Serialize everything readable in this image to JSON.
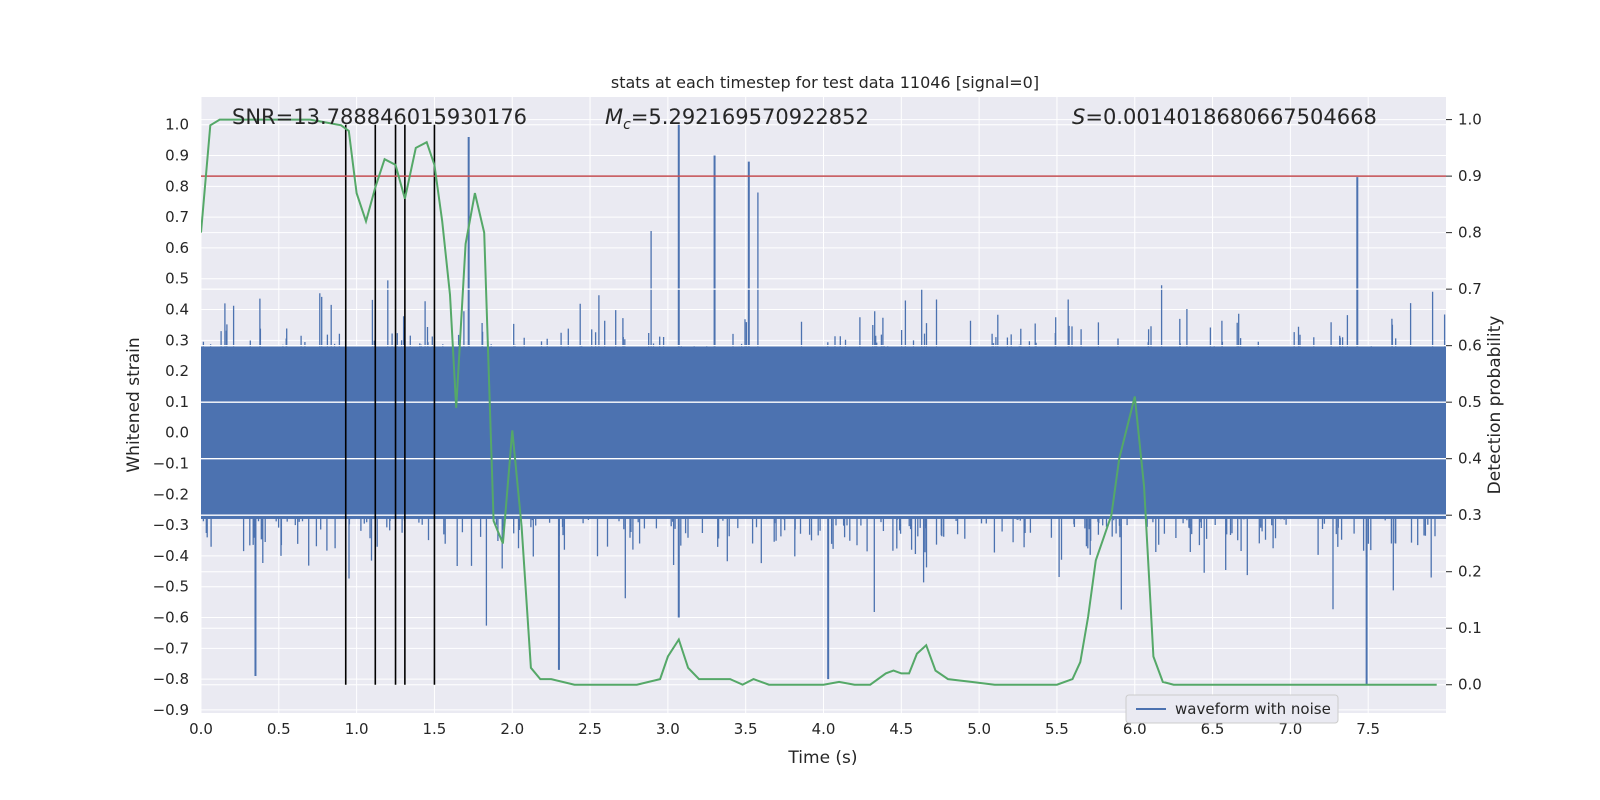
{
  "chart_data": {
    "type": "line",
    "title": "stats at each timestep for test data 11046 [signal=0]",
    "xlabel": "Time (s)",
    "ylabel": "Whitened strain",
    "y2label": "Detection probability",
    "xlim": [
      0.0,
      8.0
    ],
    "ylim": [
      -0.91,
      1.09
    ],
    "y2lim": [
      -0.05,
      1.04
    ],
    "xticks": [
      "0.0",
      "0.5",
      "1.0",
      "1.5",
      "2.0",
      "2.5",
      "3.0",
      "3.5",
      "4.0",
      "4.5",
      "5.0",
      "5.5",
      "6.0",
      "6.5",
      "7.0",
      "7.5"
    ],
    "yticks": [
      "1.0",
      "0.9",
      "0.8",
      "0.7",
      "0.6",
      "0.5",
      "0.4",
      "0.3",
      "0.2",
      "0.1",
      "0.0",
      "−0.1",
      "−0.2",
      "−0.3",
      "−0.4",
      "−0.5",
      "−0.6",
      "−0.7",
      "−0.8",
      "−0.9"
    ],
    "y2ticks": [
      "1.0",
      "0.9",
      "0.8",
      "0.7",
      "0.6",
      "0.5",
      "0.4",
      "0.3",
      "0.2",
      "0.1",
      "0.0"
    ],
    "annotations": {
      "snr": "SNR=13.788846015930176",
      "mc_symbol": "M",
      "mc_sub": "c",
      "mc_value": "=5.292169570922852",
      "s_symbol": "S",
      "s_value": "=0.0014018680667504668"
    },
    "threshold": {
      "axis": "y2",
      "value": 0.9,
      "color": "#c44e52"
    },
    "vertical_markers": [
      0.93,
      1.12,
      1.25,
      1.31,
      1.5
    ],
    "series": [
      {
        "name": "waveform with noise",
        "color": "#4c72b0",
        "axis": "y",
        "kind": "noise",
        "amplitude_envelope": 0.45,
        "peaks": [
          {
            "x": 3.07,
            "y": 1.0
          },
          {
            "x": 3.07,
            "y": -0.6
          },
          {
            "x": 1.72,
            "y": 0.96
          },
          {
            "x": 7.43,
            "y": 0.83
          },
          {
            "x": 7.49,
            "y": -0.82
          },
          {
            "x": 3.3,
            "y": 0.9
          },
          {
            "x": 3.52,
            "y": 0.88
          },
          {
            "x": 4.03,
            "y": -0.8
          },
          {
            "x": 0.35,
            "y": -0.79
          },
          {
            "x": 2.3,
            "y": -0.77
          }
        ]
      },
      {
        "name": "detection probability",
        "color": "#55a868",
        "axis": "y2",
        "x": [
          0.0,
          0.06,
          0.12,
          0.2,
          0.3,
          0.4,
          0.5,
          0.6,
          0.7,
          0.8,
          0.9,
          0.95,
          1.0,
          1.06,
          1.12,
          1.18,
          1.25,
          1.31,
          1.38,
          1.45,
          1.5,
          1.55,
          1.6,
          1.64,
          1.7,
          1.76,
          1.82,
          1.88,
          1.94,
          2.0,
          2.06,
          2.12,
          2.18,
          2.25,
          2.4,
          2.6,
          2.8,
          2.95,
          3.0,
          3.07,
          3.13,
          3.2,
          3.3,
          3.4,
          3.48,
          3.55,
          3.65,
          3.8,
          4.0,
          4.1,
          4.2,
          4.3,
          4.4,
          4.45,
          4.5,
          4.55,
          4.6,
          4.66,
          4.72,
          4.8,
          4.95,
          5.1,
          5.3,
          5.5,
          5.6,
          5.65,
          5.7,
          5.75,
          5.8,
          5.85,
          5.9,
          6.0,
          6.06,
          6.12,
          6.18,
          6.25,
          6.4,
          6.6,
          6.8,
          7.0,
          7.2,
          7.4,
          7.6,
          7.8,
          7.94
        ],
        "y": [
          0.8,
          0.99,
          1.0,
          1.0,
          1.0,
          1.0,
          1.0,
          1.0,
          1.0,
          0.995,
          0.99,
          0.98,
          0.87,
          0.82,
          0.88,
          0.93,
          0.92,
          0.86,
          0.95,
          0.96,
          0.92,
          0.82,
          0.69,
          0.49,
          0.78,
          0.87,
          0.8,
          0.29,
          0.25,
          0.45,
          0.28,
          0.03,
          0.01,
          0.01,
          0.0,
          0.0,
          0.0,
          0.01,
          0.05,
          0.08,
          0.03,
          0.01,
          0.01,
          0.01,
          0.0,
          0.01,
          0.0,
          0.0,
          0.0,
          0.005,
          0.0,
          0.0,
          0.02,
          0.025,
          0.02,
          0.02,
          0.055,
          0.07,
          0.025,
          0.01,
          0.005,
          0.0,
          0.0,
          0.0,
          0.01,
          0.04,
          0.12,
          0.22,
          0.26,
          0.3,
          0.4,
          0.51,
          0.35,
          0.05,
          0.005,
          0.0,
          0.0,
          0.0,
          0.0,
          0.0,
          0.0,
          0.0,
          0.0,
          0.0,
          0.0
        ]
      }
    ],
    "legend": {
      "placement": "lower-right",
      "label": "waveform with noise"
    }
  }
}
